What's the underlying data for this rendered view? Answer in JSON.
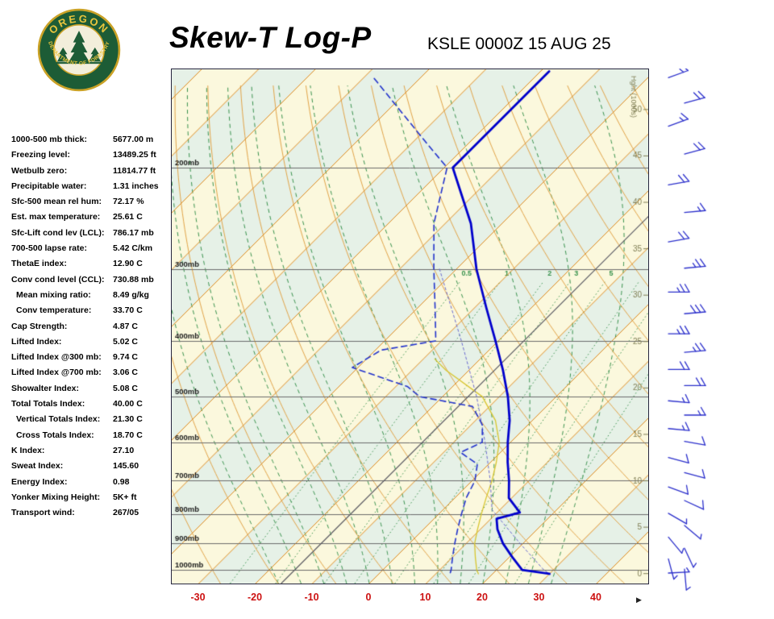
{
  "header": {
    "title": "Skew-T Log-P",
    "station_line": "KSLE 0000Z 15 AUG 25"
  },
  "logo": {
    "top_text": "OREGON",
    "bottom_text": "DEPARTMENT OF FORESTRY"
  },
  "indices": [
    {
      "label": "1000-500 mb thick:",
      "value": "5677.00 m",
      "indent": false
    },
    {
      "label": "Freezing level:",
      "value": "13489.25 ft",
      "indent": false
    },
    {
      "label": "Wetbulb zero:",
      "value": "11814.77 ft",
      "indent": false
    },
    {
      "label": "Precipitable water:",
      "value": "1.31 inches",
      "indent": false
    },
    {
      "label": "Sfc-500 mean rel hum:",
      "value": "72.17 %",
      "indent": false
    },
    {
      "label": "Est. max temperature:",
      "value": "25.61 C",
      "indent": false
    },
    {
      "label": "Sfc-Lift cond lev (LCL):",
      "value": "786.17 mb",
      "indent": false
    },
    {
      "label": "700-500 lapse rate:",
      "value": "5.42 C/km",
      "indent": false
    },
    {
      "label": "ThetaE index:",
      "value": "12.90 C",
      "indent": false
    },
    {
      "label": "Conv cond level (CCL):",
      "value": "730.88 mb",
      "indent": false
    },
    {
      "label": "Mean mixing ratio:",
      "value": "8.49 g/kg",
      "indent": true
    },
    {
      "label": "Conv temperature:",
      "value": "33.70 C",
      "indent": true
    },
    {
      "label": "Cap Strength:",
      "value": "4.87 C",
      "indent": false
    },
    {
      "label": "Lifted Index:",
      "value": "5.02 C",
      "indent": false
    },
    {
      "label": "Lifted Index @300 mb:",
      "value": "9.74 C",
      "indent": false
    },
    {
      "label": "Lifted Index @700 mb:",
      "value": "3.06 C",
      "indent": false
    },
    {
      "label": "Showalter Index:",
      "value": "5.08 C",
      "indent": false
    },
    {
      "label": "Total Totals Index:",
      "value": "40.00 C",
      "indent": false
    },
    {
      "label": "Vertical Totals Index:",
      "value": "21.30 C",
      "indent": true
    },
    {
      "label": "Cross Totals Index:",
      "value": "18.70 C",
      "indent": true
    },
    {
      "label": "K Index:",
      "value": "27.10",
      "indent": false
    },
    {
      "label": "Sweat Index:",
      "value": "145.60",
      "indent": false
    },
    {
      "label": "Energy Index:",
      "value": "0.98",
      "indent": false
    },
    {
      "label": "Yonker Mixing Height:",
      "value": "5K+ ft",
      "indent": false
    },
    {
      "label": "Transport wind:",
      "value": "267/05",
      "indent": false
    }
  ],
  "chart_data": {
    "type": "skewt-log-p",
    "title": "Skew-T Log-P",
    "station": "KSLE",
    "valid_time": "0000Z 15 AUG 25",
    "x_axis": {
      "ticks": [
        -30,
        -20,
        -10,
        0,
        10,
        20,
        30,
        40
      ],
      "unit": "C"
    },
    "pressure_lines_mb": [
      200,
      300,
      400,
      500,
      600,
      700,
      800,
      900,
      1000
    ],
    "pressure_label_suffix": "mb",
    "height_axis": {
      "label": "Hght (1000s)",
      "ticks_kft": [
        0,
        5,
        10,
        15,
        20,
        25,
        30,
        35,
        40,
        45,
        50
      ]
    },
    "isotherms_c": {
      "min": -130,
      "max": 50,
      "step": 10
    },
    "dry_adiabats_c": {
      "min": -30,
      "max": 140,
      "step": 10
    },
    "moist_adiabats_start_c": {
      "min": -16,
      "max": 32,
      "step": 4
    },
    "mixing_ratio_gkg": [
      0.5,
      1,
      2,
      3,
      5,
      8,
      12,
      20
    ],
    "mixing_ratio_labeled": [
      0.5,
      1,
      2,
      3,
      5
    ],
    "mixing_ratio_label_p": 305,
    "aux_isotherm_c": -15.5,
    "sounding": {
      "temperature_p_t": [
        [
          136,
          -58.5
        ],
        [
          200,
          -58.5
        ],
        [
          250,
          -45.5
        ],
        [
          300,
          -36.5
        ],
        [
          350,
          -28
        ],
        [
          400,
          -20.5
        ],
        [
          450,
          -14
        ],
        [
          500,
          -8.5
        ],
        [
          550,
          -4
        ],
        [
          600,
          -0.5
        ],
        [
          650,
          3
        ],
        [
          700,
          6.5
        ],
        [
          750,
          9.5
        ],
        [
          795,
          14
        ],
        [
          815,
          11
        ],
        [
          850,
          13
        ],
        [
          900,
          16.5
        ],
        [
          950,
          20.5
        ],
        [
          1000,
          24.5
        ],
        [
          1016,
          30
        ]
      ],
      "dewpoint_p_t": [
        [
          140,
          -88
        ],
        [
          180,
          -68
        ],
        [
          200,
          -59.5
        ],
        [
          250,
          -52
        ],
        [
          300,
          -44
        ],
        [
          350,
          -37
        ],
        [
          400,
          -31
        ],
        [
          415,
          -39
        ],
        [
          445,
          -41
        ],
        [
          480,
          -28
        ],
        [
          500,
          -24
        ],
        [
          520,
          -13
        ],
        [
          560,
          -8
        ],
        [
          600,
          -5
        ],
        [
          625,
          -7
        ],
        [
          655,
          -2
        ],
        [
          700,
          0.5
        ],
        [
          750,
          2
        ],
        [
          800,
          4
        ],
        [
          850,
          6
        ],
        [
          900,
          8
        ],
        [
          950,
          10
        ],
        [
          1000,
          12
        ],
        [
          1016,
          12.5
        ]
      ],
      "wetbulb_p_t": [
        [
          430,
          -28
        ],
        [
          450,
          -24
        ],
        [
          500,
          -13
        ],
        [
          550,
          -6.5
        ],
        [
          600,
          -2
        ],
        [
          650,
          1
        ],
        [
          700,
          3.5
        ],
        [
          750,
          5.5
        ],
        [
          800,
          7.5
        ],
        [
          850,
          9.5
        ],
        [
          900,
          11.5
        ],
        [
          950,
          14
        ],
        [
          1000,
          16.5
        ],
        [
          1016,
          17.5
        ]
      ],
      "parcel_p_t": [
        [
          300,
          -43
        ],
        [
          400,
          -26.5
        ],
        [
          500,
          -14
        ],
        [
          600,
          -4.5
        ],
        [
          700,
          3.2
        ],
        [
          786,
          8.6
        ],
        [
          900,
          19.5
        ],
        [
          1000,
          28.3
        ],
        [
          1016,
          30
        ]
      ],
      "winds_p_dir_spd": [
        [
          140,
          250,
          15
        ],
        [
          155,
          255,
          20
        ],
        [
          170,
          250,
          15
        ],
        [
          190,
          255,
          20
        ],
        [
          215,
          260,
          20
        ],
        [
          240,
          265,
          15
        ],
        [
          270,
          260,
          20
        ],
        [
          300,
          265,
          25
        ],
        [
          330,
          270,
          25
        ],
        [
          360,
          265,
          30
        ],
        [
          390,
          270,
          25
        ],
        [
          420,
          265,
          25
        ],
        [
          450,
          270,
          20
        ],
        [
          480,
          270,
          20
        ],
        [
          510,
          275,
          15
        ],
        [
          540,
          270,
          15
        ],
        [
          570,
          275,
          15
        ],
        [
          600,
          280,
          10
        ],
        [
          640,
          285,
          10
        ],
        [
          680,
          285,
          10
        ],
        [
          720,
          290,
          10
        ],
        [
          760,
          295,
          10
        ],
        [
          800,
          300,
          5
        ],
        [
          840,
          310,
          5
        ],
        [
          880,
          320,
          5
        ],
        [
          920,
          335,
          5
        ],
        [
          960,
          345,
          5
        ],
        [
          1000,
          355,
          5
        ],
        [
          1016,
          267,
          5
        ]
      ]
    },
    "colors": {
      "band_a": "#fbf8dd",
      "band_b": "#e6f1e7",
      "isotherm": "#de8a1e",
      "dry_adiabat": "#e2a449",
      "moist_adiabat": "#38924d",
      "mixing_ratio": "#38924d",
      "pressure_line": "#6b6b6b",
      "pressure_text": "#1a1a1a",
      "temperature": "#0000cc",
      "dewpoint": "#2233cc",
      "wetbulb": "#d8c62f",
      "parcel": "#6b6bd0",
      "aux_line": "#55555f",
      "axis_tick_text": "#cc1111",
      "height_text": "#807f55",
      "wind_barb": "#2a2ecb",
      "chart_border": "#26263e"
    }
  }
}
